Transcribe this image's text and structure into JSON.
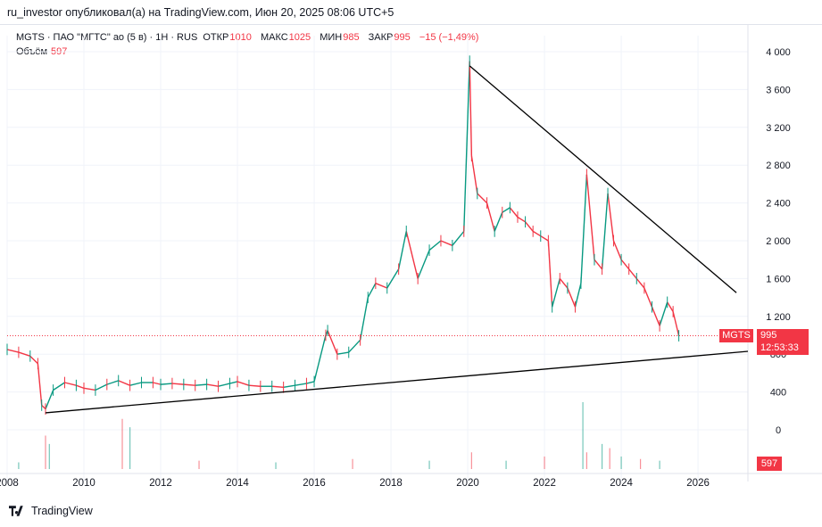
{
  "publication": {
    "header": "ru_investor опубликовал(а) на TradingView.com, Июн 20, 2025 08:06 UTC+5"
  },
  "legend": {
    "symbol_line": "MGTS · ПАО \"МГТС\" ао (5 в) · 1Н · RUS",
    "open_label": "ОТКР",
    "open_value": "1010",
    "high_label": "МАКС",
    "high_value": "1025",
    "low_label": "МИН",
    "low_value": "985",
    "close_label": "ЗАКР",
    "close_value": "995",
    "change": "−15 (−1,49%)",
    "volume_label": "Объём",
    "volume_value": "597"
  },
  "badges": {
    "ticker": "MGTS",
    "price": "995",
    "countdown": "12:53:33",
    "volume": "597"
  },
  "footer": {
    "brand": "TradingView"
  },
  "colors": {
    "up": "#089981",
    "down": "#f23645",
    "trendline": "#000000",
    "grid": "#f0f3fa",
    "text": "#131722"
  },
  "chart_data": {
    "type": "line",
    "title": "",
    "xlabel": "",
    "ylabel": "",
    "x_ticks": [
      "2008",
      "2010",
      "2012",
      "2014",
      "2016",
      "2018",
      "2020",
      "2022",
      "2024",
      "2026"
    ],
    "y_ticks": [
      "0",
      "400",
      "800",
      "1 200",
      "1 600",
      "2 000",
      "2 400",
      "2 800",
      "3 200",
      "3 600",
      "4 000"
    ],
    "xlim": [
      2008.0,
      2027.3
    ],
    "ylim": [
      0,
      4000
    ],
    "grid": true,
    "last_price": 995,
    "series": [
      {
        "x": [
          2008.0,
          2008.3,
          2008.6,
          2008.8,
          2008.9,
          2009.0,
          2009.2,
          2009.5,
          2009.8,
          2010.0,
          2010.3,
          2010.6,
          2010.9,
          2011.2,
          2011.5,
          2011.8,
          2012.0,
          2012.3,
          2012.6,
          2012.9,
          2013.2,
          2013.5,
          2013.8,
          2014.0,
          2014.3,
          2014.6,
          2014.9,
          2015.2,
          2015.5,
          2015.8,
          2016.0,
          2016.3,
          2016.35,
          2016.6,
          2016.9,
          2017.2,
          2017.4,
          2017.6,
          2017.9,
          2018.2,
          2018.4,
          2018.7,
          2019.0,
          2019.3,
          2019.6,
          2019.9,
          2020.05,
          2020.1,
          2020.25,
          2020.5,
          2020.7,
          2020.9,
          2021.1,
          2021.3,
          2021.5,
          2021.7,
          2021.9,
          2022.1,
          2022.2,
          2022.4,
          2022.6,
          2022.8,
          2022.95,
          2023.1,
          2023.3,
          2023.5,
          2023.65,
          2023.8,
          2024.0,
          2024.2,
          2024.4,
          2024.6,
          2024.8,
          2025.0,
          2025.2,
          2025.35,
          2025.5
        ],
        "y": [
          850,
          820,
          780,
          700,
          260,
          220,
          420,
          500,
          470,
          440,
          420,
          480,
          520,
          470,
          500,
          500,
          480,
          490,
          480,
          470,
          480,
          460,
          490,
          510,
          470,
          460,
          460,
          450,
          470,
          490,
          510,
          1000,
          1050,
          800,
          820,
          950,
          1400,
          1550,
          1500,
          1700,
          2100,
          1600,
          1900,
          2000,
          1950,
          2100,
          3900,
          2900,
          2500,
          2400,
          2100,
          2300,
          2350,
          2250,
          2200,
          2100,
          2050,
          2000,
          1300,
          1600,
          1500,
          1300,
          1550,
          2700,
          1800,
          1700,
          2500,
          2000,
          1800,
          1700,
          1600,
          1500,
          1300,
          1100,
          1350,
          1250,
          995
        ]
      }
    ],
    "volume": {
      "x": [
        2008.3,
        2009.0,
        2009.1,
        2011.0,
        2011.2,
        2013.0,
        2015.0,
        2017.0,
        2019.0,
        2020.1,
        2021.0,
        2022.0,
        2023.0,
        2023.1,
        2023.5,
        2023.7,
        2024.0,
        2024.5,
        2025.0
      ],
      "y": [
        8,
        40,
        30,
        60,
        50,
        10,
        8,
        12,
        10,
        20,
        10,
        15,
        80,
        20,
        30,
        25,
        15,
        12,
        10
      ]
    },
    "trendlines": [
      {
        "x": [
          2020.05,
          2027.0
        ],
        "y": [
          3850,
          1450
        ]
      },
      {
        "x": [
          2009.0,
          2027.3
        ],
        "y": [
          180,
          830
        ]
      }
    ]
  }
}
